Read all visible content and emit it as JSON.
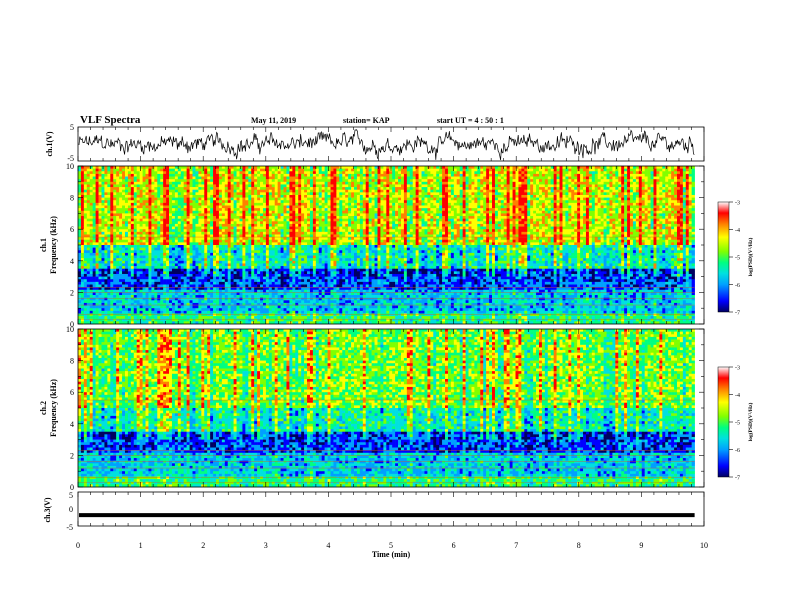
{
  "header": {
    "title": "VLF Spectra",
    "date": "May 11, 2019",
    "station": "station= KAP",
    "start": "start  UT  =   4 : 50 : 1"
  },
  "chart_data": [
    {
      "type": "line",
      "panel": "ch1-waveform",
      "ylabel": "ch.1(V)",
      "ylim": [
        -5,
        5
      ],
      "yticks": [
        "5",
        "-5"
      ],
      "xlim": [
        0,
        10
      ],
      "series": [
        {
          "color": "#000000",
          "mean": 0,
          "approx_amplitude": 1.8,
          "note_span_min": [
            0,
            9.85
          ]
        }
      ]
    },
    {
      "type": "heatmap",
      "panel": "ch1-spectrogram",
      "ylabel": "ch.1\nFrequency (kHz)",
      "ylabel_line1": "ch.1",
      "ylabel_line2": "Frequency (kHz)",
      "ylim": [
        0,
        10
      ],
      "yticks": [
        "0",
        "2",
        "4",
        "6",
        "8",
        "10"
      ],
      "xlim": [
        0,
        10
      ],
      "data_span_min": [
        0,
        9.85
      ],
      "colorbar": {
        "label": "log(PSD)(V²/Hz)",
        "range": [
          -7,
          -3
        ],
        "ticks": [
          "-3",
          "-4",
          "-5",
          "-6",
          "-7"
        ]
      }
    },
    {
      "type": "heatmap",
      "panel": "ch2-spectrogram",
      "ylabel_line1": "ch.2",
      "ylabel_line2": "Frequency (kHz)",
      "ylim": [
        0,
        10
      ],
      "yticks": [
        "0",
        "2",
        "4",
        "6",
        "8",
        "10"
      ],
      "xlim": [
        0,
        10
      ],
      "data_span_min": [
        0,
        9.85
      ],
      "colorbar": {
        "label": "log(PSD)(V²/Hz)",
        "range": [
          -7,
          -3
        ],
        "ticks": [
          "-3",
          "-4",
          "-5",
          "-6",
          "-7"
        ]
      }
    },
    {
      "type": "line",
      "panel": "ch3-waveform",
      "ylabel": "ch.3(V)",
      "ylim": [
        -5,
        5
      ],
      "yticks": [
        "5",
        "0",
        "-5"
      ],
      "xlim": [
        0,
        10
      ],
      "xlabel": "Time  (min)",
      "xticks": [
        "0",
        "1",
        "2",
        "3",
        "4",
        "5",
        "6",
        "7",
        "8",
        "9",
        "10"
      ],
      "series": [
        {
          "color": "#000000",
          "constant_value": -1.8,
          "note_span_min": [
            0,
            9.85
          ]
        }
      ]
    }
  ],
  "colormap": [
    "#000060",
    "#0000ff",
    "#00a0ff",
    "#00e0e0",
    "#00ff80",
    "#80ff00",
    "#ffff00",
    "#ff8000",
    "#ff0000",
    "#ffffff"
  ]
}
